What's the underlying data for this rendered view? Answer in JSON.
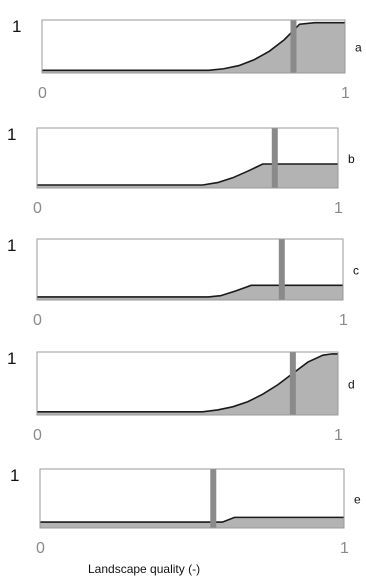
{
  "chart_data": [
    {
      "type": "area",
      "panel_label": "a",
      "x_ticks": [
        "0",
        "1"
      ],
      "y_ticks": [
        "1"
      ],
      "xlim": [
        0,
        1
      ],
      "ylim": [
        0,
        1
      ],
      "curve": [
        [
          0,
          0.05
        ],
        [
          0.55,
          0.05
        ],
        [
          0.6,
          0.08
        ],
        [
          0.65,
          0.14
        ],
        [
          0.7,
          0.25
        ],
        [
          0.75,
          0.41
        ],
        [
          0.8,
          0.63
        ],
        [
          0.85,
          0.92
        ],
        [
          0.9,
          0.95
        ],
        [
          1,
          0.95
        ]
      ],
      "marker_x": 0.83,
      "fill_color": "#b3b3b3",
      "marker_color": "#8a8a8a"
    },
    {
      "type": "area",
      "panel_label": "b",
      "x_ticks": [
        "0",
        "1"
      ],
      "y_ticks": [
        "1"
      ],
      "xlim": [
        0,
        1
      ],
      "ylim": [
        0,
        1
      ],
      "curve": [
        [
          0,
          0.05
        ],
        [
          0.55,
          0.05
        ],
        [
          0.6,
          0.09
        ],
        [
          0.65,
          0.17
        ],
        [
          0.7,
          0.28
        ],
        [
          0.75,
          0.4
        ],
        [
          0.78,
          0.4
        ],
        [
          1,
          0.4
        ]
      ],
      "marker_x": 0.79,
      "fill_color": "#b3b3b3",
      "marker_color": "#8a8a8a"
    },
    {
      "type": "area",
      "panel_label": "c",
      "x_ticks": [
        "0",
        "1"
      ],
      "y_ticks": [
        "1"
      ],
      "xlim": [
        0,
        1
      ],
      "ylim": [
        0,
        1
      ],
      "curve": [
        [
          0,
          0.05
        ],
        [
          0.56,
          0.05
        ],
        [
          0.6,
          0.07
        ],
        [
          0.65,
          0.15
        ],
        [
          0.7,
          0.24
        ],
        [
          0.75,
          0.24
        ],
        [
          1,
          0.24
        ]
      ],
      "marker_x": 0.8,
      "fill_color": "#b3b3b3",
      "marker_color": "#8a8a8a"
    },
    {
      "type": "area",
      "panel_label": "d",
      "x_ticks": [
        "0",
        "1"
      ],
      "y_ticks": [
        "1"
      ],
      "xlim": [
        0,
        1
      ],
      "ylim": [
        0,
        1
      ],
      "curve": [
        [
          0,
          0.05
        ],
        [
          0.55,
          0.05
        ],
        [
          0.6,
          0.08
        ],
        [
          0.65,
          0.13
        ],
        [
          0.7,
          0.21
        ],
        [
          0.75,
          0.33
        ],
        [
          0.8,
          0.48
        ],
        [
          0.85,
          0.66
        ],
        [
          0.9,
          0.84
        ],
        [
          0.95,
          0.95
        ],
        [
          0.98,
          0.97
        ],
        [
          1,
          0.97
        ]
      ],
      "marker_x": 0.85,
      "fill_color": "#b3b3b3",
      "marker_color": "#8a8a8a"
    },
    {
      "type": "area",
      "panel_label": "e",
      "x_ticks": [
        "0",
        "1"
      ],
      "y_ticks": [
        "1"
      ],
      "xlim": [
        0,
        1
      ],
      "ylim": [
        0,
        1
      ],
      "xlabel": "Landscape quality (-)",
      "curve": [
        [
          0,
          0.1
        ],
        [
          0.6,
          0.1
        ],
        [
          0.64,
          0.18
        ],
        [
          1,
          0.18
        ]
      ],
      "marker_x": 0.57,
      "fill_color": "#b3b3b3",
      "marker_color": "#8a8a8a"
    }
  ]
}
